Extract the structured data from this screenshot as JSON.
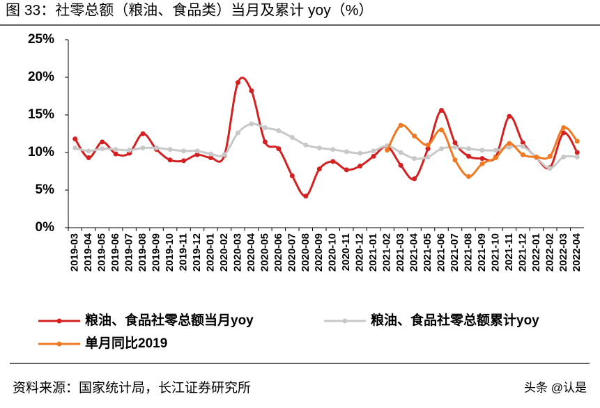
{
  "chart_data": {
    "type": "line",
    "title": "图 33：社零总额（粮油、食品类）当月及累计 yoy（%）",
    "source": "资料来源：国家统计局，长江证券研究所",
    "watermark": "头条 @认是",
    "categories": [
      "2019-03",
      "2019-04",
      "2019-05",
      "2019-06",
      "2019-07",
      "2019-08",
      "2019-09",
      "2019-10",
      "2019-11",
      "2019-12",
      "2020-01",
      "2020-02",
      "2020-03",
      "2020-04",
      "2020-05",
      "2020-06",
      "2020-07",
      "2020-08",
      "2020-09",
      "2020-10",
      "2020-11",
      "2020-12",
      "2021-01",
      "2021-02",
      "2021-03",
      "2021-04",
      "2021-05",
      "2021-06",
      "2021-07",
      "2021-08",
      "2021-09",
      "2021-10",
      "2021-11",
      "2021-12",
      "2022-01",
      "2022-02",
      "2022-03",
      "2022-04"
    ],
    "series": [
      {
        "name": "粮油、食品社零总额当月yoy",
        "color": "#d42020",
        "values": [
          11.8,
          9.3,
          11.4,
          9.8,
          9.9,
          12.5,
          10.4,
          9.0,
          8.9,
          9.7,
          9.3,
          9.6,
          19.3,
          18.2,
          11.4,
          10.5,
          6.9,
          4.2,
          7.8,
          8.8,
          7.7,
          8.2,
          9.5,
          10.8,
          8.3,
          6.5,
          10.5,
          15.6,
          11.3,
          9.5,
          9.2,
          9.4,
          14.8,
          11.3,
          9.3,
          8.0,
          12.6,
          10.0
        ]
      },
      {
        "name": "粮油、食品社零总额累计yoy",
        "color": "#c8c8c8",
        "values": [
          10.6,
          10.2,
          10.5,
          10.4,
          10.3,
          10.6,
          10.6,
          10.4,
          10.2,
          10.2,
          9.8,
          9.7,
          12.6,
          13.8,
          13.3,
          12.9,
          12.0,
          11.0,
          10.6,
          10.4,
          10.1,
          9.9,
          10.2,
          10.9,
          10.0,
          9.2,
          9.4,
          10.5,
          10.7,
          10.5,
          10.3,
          10.3,
          10.7,
          10.8,
          9.3,
          7.9,
          9.4,
          9.4
        ]
      },
      {
        "name": "单月同比2019",
        "color": "#f07820",
        "values": [
          null,
          null,
          null,
          null,
          null,
          null,
          null,
          null,
          null,
          null,
          null,
          null,
          null,
          null,
          null,
          null,
          null,
          null,
          null,
          null,
          null,
          null,
          null,
          10.3,
          13.6,
          12.2,
          11.0,
          13.0,
          9.0,
          6.8,
          8.5,
          9.3,
          11.2,
          9.7,
          9.4,
          9.5,
          13.3,
          11.5
        ]
      }
    ],
    "ylim": [
      0,
      25
    ],
    "yticks": [
      {
        "value": 0,
        "label": "0%"
      },
      {
        "value": 5,
        "label": "5%"
      },
      {
        "value": 10,
        "label": "10%"
      },
      {
        "value": 15,
        "label": "15%"
      },
      {
        "value": 20,
        "label": "20%"
      },
      {
        "value": 25,
        "label": "25%"
      }
    ],
    "grid": false
  }
}
